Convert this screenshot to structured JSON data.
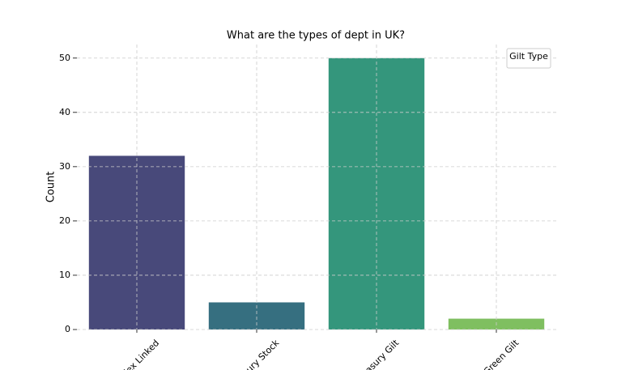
{
  "chart_data": {
    "type": "bar",
    "title": "What are the types of dept in UK?",
    "y_label": "Count",
    "categories": [
      "dex Linked",
      "sury Stock",
      "easury Gilt",
      "Green Gilt"
    ],
    "values": [
      32,
      5,
      50,
      2
    ],
    "colors": [
      "#48497a",
      "#366f80",
      "#34967c",
      "#7fbf60"
    ],
    "ylim": [
      0,
      52.5
    ],
    "yticks": [
      0,
      10,
      20,
      30,
      40,
      50
    ],
    "grid": true,
    "legend_title": "Gilt Type",
    "legend_position": "upper right"
  }
}
